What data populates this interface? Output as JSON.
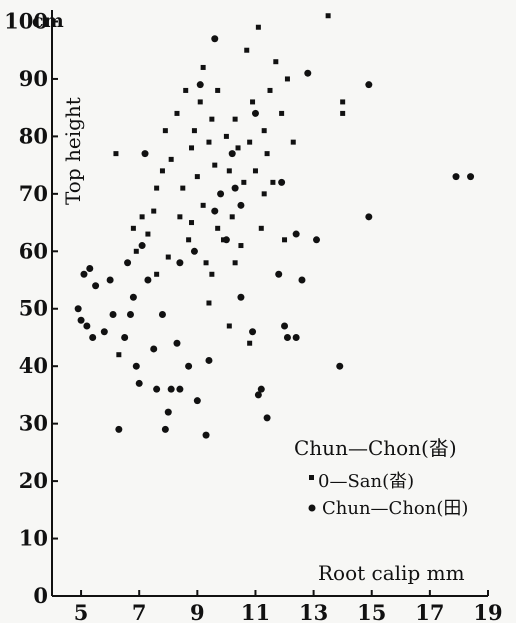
{
  "chart_data": {
    "type": "scatter",
    "title": "",
    "xlabel": "Root calip mm",
    "ylabel": "Top height",
    "y_unit": "cm",
    "xlim": [
      4,
      19
    ],
    "ylim": [
      0,
      102
    ],
    "x_ticks": [
      5,
      7,
      9,
      11,
      13,
      15,
      17,
      19
    ],
    "y_ticks": [
      0,
      10,
      20,
      30,
      40,
      50,
      60,
      70,
      80,
      90,
      100
    ],
    "legend": {
      "title": "Chun—Chon(畓)",
      "placement": "bottom-right"
    },
    "series": [
      {
        "name": "0—San(畓)",
        "marker": "square",
        "points": [
          [
            6.2,
            77
          ],
          [
            6.3,
            42
          ],
          [
            6.8,
            64
          ],
          [
            6.9,
            60
          ],
          [
            7.1,
            66
          ],
          [
            7.3,
            63
          ],
          [
            7.5,
            67
          ],
          [
            7.6,
            56
          ],
          [
            7.6,
            71
          ],
          [
            7.8,
            74
          ],
          [
            7.9,
            81
          ],
          [
            8.0,
            59
          ],
          [
            8.1,
            76
          ],
          [
            8.3,
            84
          ],
          [
            8.4,
            66
          ],
          [
            8.5,
            71
          ],
          [
            8.6,
            88
          ],
          [
            8.7,
            62
          ],
          [
            8.8,
            78
          ],
          [
            8.9,
            81
          ],
          [
            9.0,
            73
          ],
          [
            9.1,
            86
          ],
          [
            9.2,
            92
          ],
          [
            9.2,
            68
          ],
          [
            9.3,
            58
          ],
          [
            9.4,
            79
          ],
          [
            9.5,
            83
          ],
          [
            9.6,
            75
          ],
          [
            9.7,
            88
          ],
          [
            9.8,
            70
          ],
          [
            9.9,
            62
          ],
          [
            10.0,
            80
          ],
          [
            10.1,
            74
          ],
          [
            10.1,
            47
          ],
          [
            10.2,
            66
          ],
          [
            10.3,
            83
          ],
          [
            10.4,
            78
          ],
          [
            10.5,
            61
          ],
          [
            10.6,
            72
          ],
          [
            10.7,
            95
          ],
          [
            10.8,
            79
          ],
          [
            10.9,
            86
          ],
          [
            11.0,
            74
          ],
          [
            11.1,
            99
          ],
          [
            11.2,
            64
          ],
          [
            11.3,
            81
          ],
          [
            11.4,
            77
          ],
          [
            11.5,
            88
          ],
          [
            11.6,
            72
          ],
          [
            11.7,
            93
          ],
          [
            11.9,
            84
          ],
          [
            12.1,
            90
          ],
          [
            12.3,
            79
          ],
          [
            13.5,
            101
          ],
          [
            14.0,
            86
          ],
          [
            14.0,
            84
          ],
          [
            9.4,
            51
          ],
          [
            9.5,
            56
          ],
          [
            10.8,
            44
          ],
          [
            11.3,
            70
          ],
          [
            12.0,
            62
          ],
          [
            9.7,
            64
          ],
          [
            8.8,
            65
          ],
          [
            10.3,
            58
          ]
        ]
      },
      {
        "name": "Chun—Chon(田)",
        "marker": "circle",
        "points": [
          [
            4.9,
            50
          ],
          [
            5.0,
            48
          ],
          [
            5.1,
            56
          ],
          [
            5.2,
            47
          ],
          [
            5.3,
            57
          ],
          [
            5.4,
            45
          ],
          [
            5.5,
            54
          ],
          [
            5.8,
            46
          ],
          [
            6.0,
            55
          ],
          [
            6.1,
            49
          ],
          [
            6.3,
            29
          ],
          [
            6.5,
            45
          ],
          [
            6.6,
            58
          ],
          [
            6.8,
            52
          ],
          [
            6.9,
            40
          ],
          [
            7.0,
            37
          ],
          [
            7.1,
            61
          ],
          [
            7.2,
            77
          ],
          [
            7.3,
            55
          ],
          [
            7.5,
            43
          ],
          [
            7.6,
            36
          ],
          [
            7.9,
            29
          ],
          [
            8.0,
            32
          ],
          [
            8.1,
            36
          ],
          [
            8.3,
            44
          ],
          [
            8.4,
            36
          ],
          [
            8.7,
            40
          ],
          [
            9.0,
            34
          ],
          [
            9.3,
            28
          ],
          [
            9.4,
            41
          ],
          [
            9.1,
            89
          ],
          [
            9.6,
            97
          ],
          [
            9.8,
            70
          ],
          [
            10.0,
            62
          ],
          [
            10.2,
            77
          ],
          [
            10.5,
            52
          ],
          [
            10.9,
            46
          ],
          [
            11.1,
            35
          ],
          [
            11.2,
            36
          ],
          [
            11.4,
            31
          ],
          [
            11.8,
            56
          ],
          [
            12.0,
            47
          ],
          [
            12.1,
            45
          ],
          [
            12.4,
            45
          ],
          [
            12.6,
            55
          ],
          [
            12.8,
            91
          ],
          [
            13.1,
            62
          ],
          [
            13.9,
            40
          ],
          [
            14.9,
            89
          ],
          [
            14.9,
            66
          ],
          [
            17.9,
            73
          ],
          [
            18.4,
            73
          ],
          [
            11.9,
            72
          ],
          [
            12.4,
            63
          ],
          [
            10.5,
            68
          ],
          [
            8.4,
            58
          ],
          [
            7.8,
            49
          ],
          [
            6.7,
            49
          ],
          [
            8.9,
            60
          ],
          [
            9.6,
            67
          ],
          [
            10.3,
            71
          ],
          [
            11.0,
            84
          ]
        ]
      }
    ]
  }
}
